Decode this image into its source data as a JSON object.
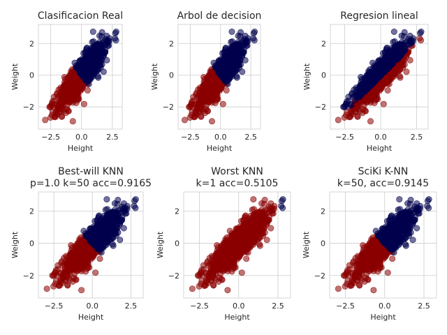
{
  "figure": {
    "background": "#ffffff",
    "colors": {
      "class_high": "#00004d",
      "class_low": "#8b0000",
      "grid": "#cccccc",
      "text": "#262626"
    }
  },
  "chart_data": [
    {
      "type": "scatter",
      "title_lines": [
        "Clasificacion Real"
      ],
      "xlabel": "Height",
      "ylabel": "Weight",
      "xlim": [
        -3.5,
        3.3
      ],
      "ylim": [
        -3.4,
        3.2
      ],
      "xticks": [
        -2.5,
        0.0,
        2.5
      ],
      "xtick_labels": [
        "−2.5",
        "0.0",
        "2.5"
      ],
      "yticks": [
        -2,
        0,
        2
      ],
      "ytick_labels": [
        "−2",
        "0",
        "2"
      ],
      "grid": true,
      "distribution": {
        "mode": "true",
        "slope": 1.0,
        "center_spread": 0.6,
        "perp_spread": 0.35,
        "n_points": 1000
      },
      "series": [
        {
          "color": "#00004d",
          "region": "upper-right"
        },
        {
          "color": "#8b0000",
          "region": "lower-left"
        }
      ]
    },
    {
      "type": "scatter",
      "title_lines": [
        "Arbol de decision"
      ],
      "xlabel": "Height",
      "ylabel": "Weight",
      "xlim": [
        -3.5,
        3.3
      ],
      "ylim": [
        -3.4,
        3.2
      ],
      "xticks": [
        -2.5,
        0.0,
        2.5
      ],
      "xtick_labels": [
        "−2.5",
        "0.0",
        "2.5"
      ],
      "yticks": [
        -2,
        0,
        2
      ],
      "ytick_labels": [
        "−2",
        "0",
        "2"
      ],
      "grid": true,
      "distribution": {
        "mode": "true",
        "slope": 1.0,
        "center_spread": 0.6,
        "perp_spread": 0.35,
        "n_points": 1000
      },
      "series": [
        {
          "color": "#00004d",
          "region": "upper-right"
        },
        {
          "color": "#8b0000",
          "region": "lower-left"
        }
      ]
    },
    {
      "type": "scatter",
      "title_lines": [
        "Regresion lineal"
      ],
      "xlabel": "Height",
      "ylabel": "Weight",
      "xlim": [
        -3.5,
        3.3
      ],
      "ylim": [
        -3.4,
        3.2
      ],
      "xticks": [
        -2.5,
        0.0,
        2.5
      ],
      "xtick_labels": [
        "−2.5",
        "0.0",
        "2.5"
      ],
      "yticks": [
        -2,
        0,
        2
      ],
      "ytick_labels": [
        "−2",
        "0",
        "2"
      ],
      "grid": true,
      "distribution": {
        "mode": "linear",
        "slope": 1.0,
        "center_spread": 0.6,
        "perp_spread": 0.35,
        "n_points": 1000
      },
      "series": [
        {
          "color": "#00004d",
          "region": "upper-left"
        },
        {
          "color": "#8b0000",
          "region": "lower-right"
        }
      ]
    },
    {
      "type": "scatter",
      "title_lines": [
        "Best-will KNN",
        "p=1.0 k=50 acc=0.9165"
      ],
      "xlabel": "Height",
      "ylabel": "Weight",
      "xlim": [
        -3.5,
        3.3
      ],
      "ylim": [
        -3.4,
        3.2
      ],
      "xticks": [
        -2.5,
        0.0,
        2.5
      ],
      "xtick_labels": [
        "−2.5",
        "0.0",
        "2.5"
      ],
      "yticks": [
        -2,
        0,
        2
      ],
      "ytick_labels": [
        "−2",
        "0",
        "2"
      ],
      "grid": true,
      "distribution": {
        "mode": "true",
        "slope": 1.0,
        "center_spread": 0.6,
        "perp_spread": 0.35,
        "n_points": 1000
      },
      "series": [
        {
          "color": "#00004d",
          "region": "upper-left"
        },
        {
          "color": "#8b0000",
          "region": "lower-right"
        }
      ]
    },
    {
      "type": "scatter",
      "title_lines": [
        "Worst KNN",
        "k=1 acc=0.5105"
      ],
      "xlabel": "Height",
      "ylabel": "Weight",
      "xlim": [
        -3.5,
        3.3
      ],
      "ylim": [
        -3.4,
        3.2
      ],
      "xticks": [
        -2.5,
        0.0,
        2.5
      ],
      "xtick_labels": [
        "−2.5",
        "0.0",
        "2.5"
      ],
      "yticks": [
        -2,
        0,
        2
      ],
      "ytick_labels": [
        "−2",
        "0",
        "2"
      ],
      "grid": true,
      "distribution": {
        "mode": "mostly-low",
        "slope": 1.0,
        "center_spread": 0.6,
        "perp_spread": 0.35,
        "n_points": 1000
      },
      "series": [
        {
          "color": "#00004d",
          "region": "top-right tip"
        },
        {
          "color": "#8b0000",
          "region": "nearly all"
        }
      ]
    },
    {
      "type": "scatter",
      "title_lines": [
        "SciKi K-NN",
        "k=50, acc=0.9145"
      ],
      "xlabel": "Height",
      "ylabel": "Weight",
      "xlim": [
        -3.5,
        3.3
      ],
      "ylim": [
        -3.4,
        3.2
      ],
      "xticks": [
        -2.5,
        0.0,
        2.5
      ],
      "xtick_labels": [
        "−2.5",
        "0.0",
        "2.5"
      ],
      "yticks": [
        -2,
        0,
        2
      ],
      "ytick_labels": [
        "−2",
        "0",
        "2"
      ],
      "grid": true,
      "distribution": {
        "mode": "true",
        "slope": 1.0,
        "center_spread": 0.6,
        "perp_spread": 0.35,
        "n_points": 1000
      },
      "series": [
        {
          "color": "#00004d",
          "region": "upper-left"
        },
        {
          "color": "#8b0000",
          "region": "lower-right"
        }
      ]
    }
  ]
}
